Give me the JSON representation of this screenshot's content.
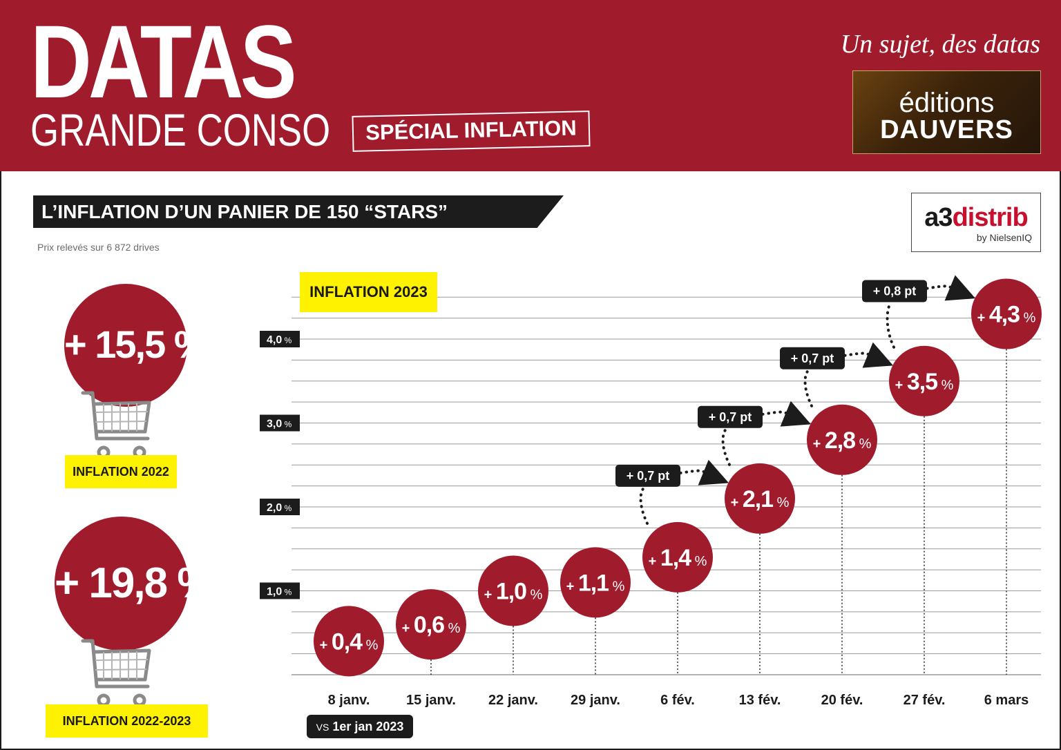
{
  "header": {
    "brand": "DATAS",
    "brand_sub": "GRANDE CONSO",
    "special": "SPÉCIAL INFLATION",
    "tagline": "Un sujet, des datas",
    "publisher_line1": "éditions",
    "publisher_line2": "DAUVERS"
  },
  "section": {
    "title": "L’INFLATION D’UN PANIER DE 150 “STARS”",
    "source_note": "Prix relevés sur 6 872 drives",
    "logo_main_a3": "a3",
    "logo_main_distrib": "distrib",
    "logo_sub": "by NielsenIQ"
  },
  "summary": {
    "inflation_2022": {
      "value": "+ 15,5 %",
      "label": "INFLATION 2022"
    },
    "inflation_2022_2023": {
      "value": "+ 19,8 %",
      "label": "INFLATION 2022-2023"
    },
    "cart_icon": "shopping-cart-icon"
  },
  "chart_tag": "INFLATION 2023",
  "vs_tag": {
    "prefix": "VS",
    "text": "1er jan 2023"
  },
  "colors": {
    "brand_red": "#a01b2c",
    "yellow": "#fff200",
    "dark": "#1c1c1c",
    "grid": "#9a9a9a"
  },
  "chart_data": {
    "type": "scatter",
    "title": "INFLATION 2023",
    "categories": [
      "8 janv.",
      "15 janv.",
      "22 janv.",
      "29 janv.",
      "6 fév.",
      "13 fév.",
      "20 fév.",
      "27 fév.",
      "6 mars"
    ],
    "values": [
      0.4,
      0.6,
      1.0,
      1.1,
      1.4,
      2.1,
      2.8,
      3.5,
      4.3
    ],
    "value_labels": [
      "+ 0,4 %",
      "+ 0,6 %",
      "+ 1,0 %",
      "+ 1,1 %",
      "+ 1,4 %",
      "+ 2,1 %",
      "+ 2,8 %",
      "+ 3,5 %",
      "+ 4,3 %"
    ],
    "y_ticks": [
      1.0,
      2.0,
      3.0,
      4.0
    ],
    "y_tick_labels": [
      "1,0 %",
      "2,0 %",
      "3,0 %",
      "4,0 %"
    ],
    "ylim": [
      0,
      4.5
    ],
    "grid": true,
    "annotations": [
      {
        "text": "+ 0,7 pt",
        "from": "6 fév.",
        "to": "13 fév."
      },
      {
        "text": "+ 0,7 pt",
        "from": "13 fév.",
        "to": "20 fév."
      },
      {
        "text": "+ 0,7 pt",
        "from": "20 fév.",
        "to": "27 fév."
      },
      {
        "text": "+ 0,8 pt",
        "from": "27 fév.",
        "to": "6 mars"
      }
    ]
  }
}
